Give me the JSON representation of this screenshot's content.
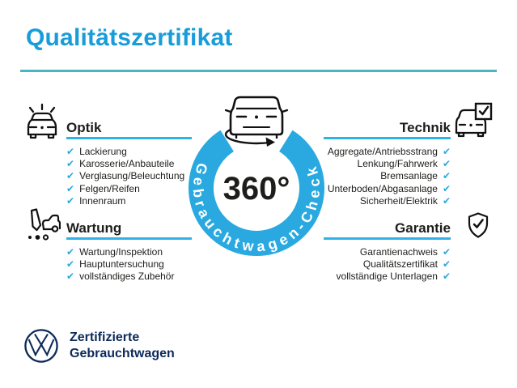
{
  "title": "Qualitätszertifikat",
  "center": {
    "degree_label": "360°",
    "ring_label": "Gebrauchtwagen-Check"
  },
  "sections": {
    "optik": {
      "heading": "Optik",
      "items": [
        "Lackierung",
        "Karosserie/Anbauteile",
        "Verglasung/Beleuchtung",
        "Felgen/Reifen",
        "Innenraum"
      ]
    },
    "wartung": {
      "heading": "Wartung",
      "items": [
        "Wartung/Inspektion",
        "Hauptuntersuchung",
        "vollständiges Zubehör"
      ]
    },
    "technik": {
      "heading": "Technik",
      "items": [
        "Aggregate/Antriebsstrang",
        "Lenkung/Fahrwerk",
        "Bremsanlage",
        "Unterboden/Abgasanlage",
        "Sicherheit/Elektrik"
      ]
    },
    "garantie": {
      "heading": "Garantie",
      "items": [
        "Garantienachweis",
        "Qualitätszertifikat",
        "vollständige Unterlagen"
      ]
    }
  },
  "footer": {
    "brand_line1": "Zertifizierte",
    "brand_line2": "Gebrauchtwagen"
  },
  "icons": {
    "check_glyph": "✔",
    "optik": "car-front-shine-icon",
    "wartung": "pencil-car-checklist-icon",
    "technik": "car-checkbox-icon",
    "garantie": "shield-check-icon",
    "center": "car-rotate-360-icon",
    "brand": "vw-logo"
  },
  "colors": {
    "title_blue": "#189dd9",
    "ring_blue": "#29a9e0",
    "underline_blue": "#2fb2e8",
    "rule_teal": "#47b6c6",
    "check_blue": "#29a9e0",
    "text_dark": "#1d1d1b",
    "brand_navy": "#0c2a5a",
    "ring_text": "#ffffff"
  }
}
